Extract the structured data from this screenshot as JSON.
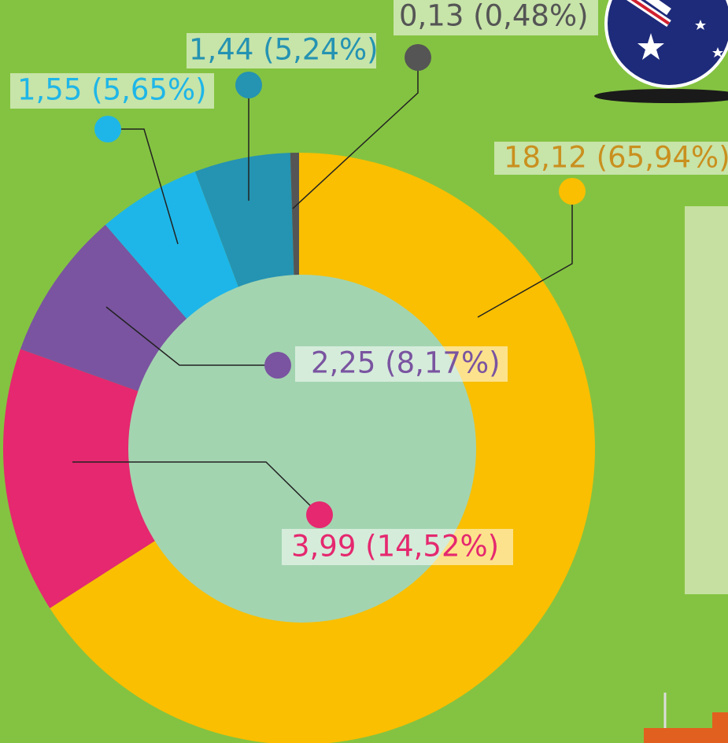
{
  "chart_data": {
    "type": "donut",
    "values": [
      18.12,
      3.99,
      2.25,
      1.55,
      1.44,
      0.13
    ],
    "value_labels": [
      "18,12 (65,94%)",
      "3,99 (14,52%)",
      "2,25 (8,17%)",
      "1,55 (5,65%)",
      "1,44 (5,24%)",
      "0,13 (0,48%)"
    ],
    "colors": [
      "#f9bf00",
      "#e5286f",
      "#7a54a0",
      "#1eb6e8",
      "#2593b2",
      "#555555"
    ],
    "label_colors": [
      "#c9901e",
      "#e5286f",
      "#7a54a0",
      "#1eb6e8",
      "#2593b2",
      "#555555"
    ]
  }
}
